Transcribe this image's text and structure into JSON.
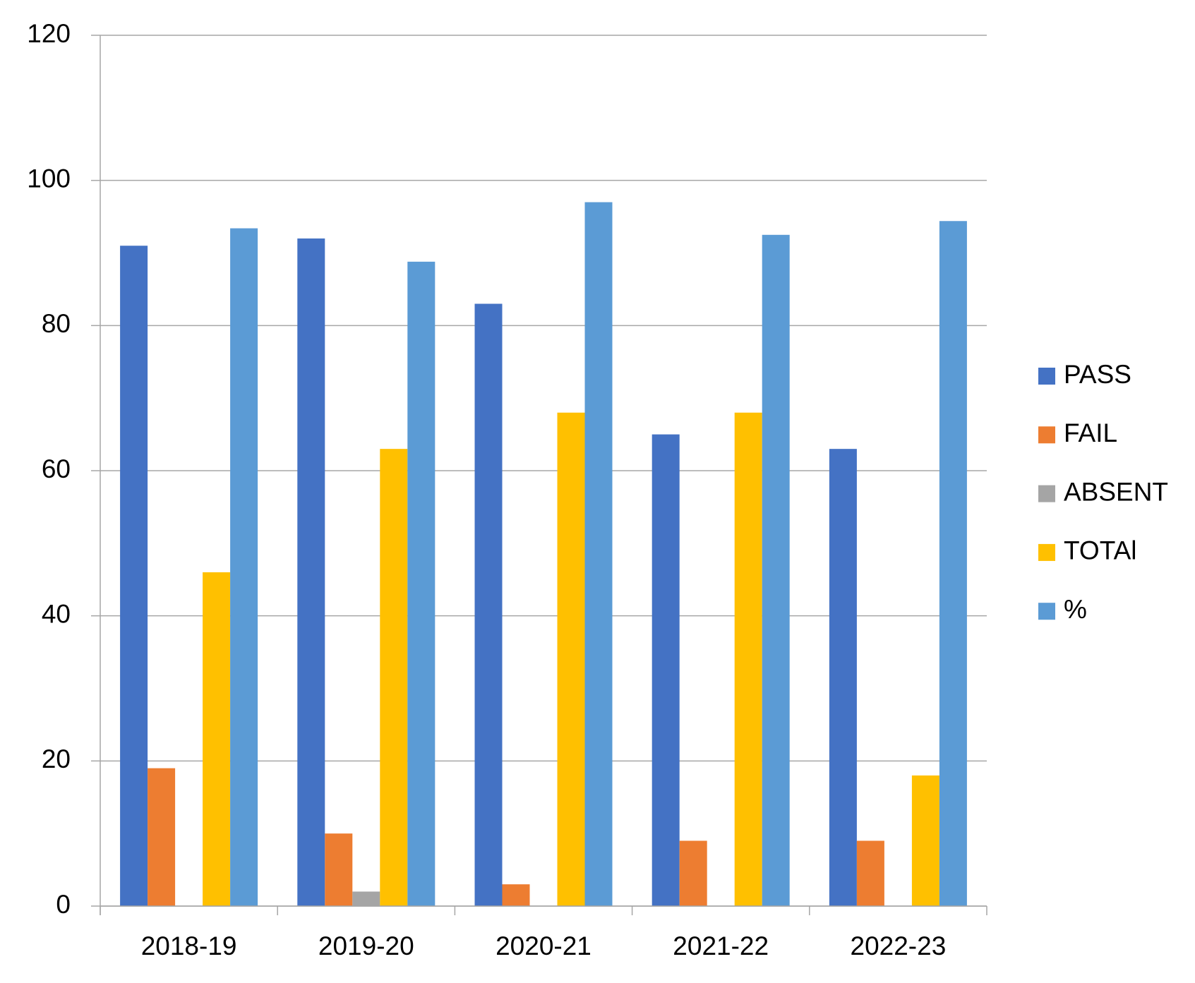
{
  "chart_data": {
    "type": "bar",
    "categories": [
      "2018-19",
      "2019-20",
      "2020-21",
      "2021-22",
      "2022-23"
    ],
    "series": [
      {
        "name": "PASS",
        "color": "#4472c4",
        "values": [
          91,
          92,
          83,
          65,
          63
        ]
      },
      {
        "name": "FAIL",
        "color": "#ed7d31",
        "values": [
          19,
          10,
          3,
          9,
          9
        ]
      },
      {
        "name": "ABSENT",
        "color": "#a5a5a5",
        "values": [
          0,
          2,
          0,
          0,
          0
        ]
      },
      {
        "name": "TOTAl",
        "color": "#ffc000",
        "values": [
          46,
          63,
          68,
          68,
          18
        ]
      },
      {
        "name": "%",
        "color": "#5b9bd5",
        "values": [
          93.4,
          88.8,
          97,
          92.5,
          94.4
        ]
      }
    ],
    "ylim": [
      0,
      120
    ],
    "yticks": [
      0,
      20,
      40,
      60,
      80,
      100,
      120
    ],
    "grid": true,
    "legend": "right"
  }
}
